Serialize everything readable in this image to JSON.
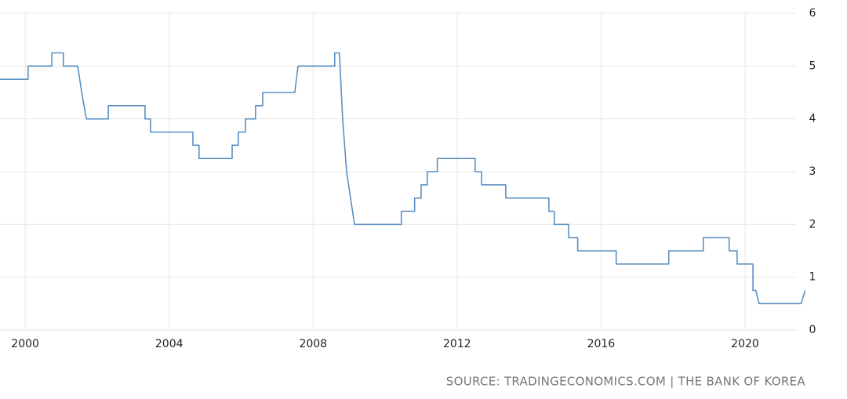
{
  "chart_data": {
    "type": "line",
    "source": "SOURCE: TRADINGECONOMICS.COM | THE BANK OF KOREA",
    "x": [
      1999.3,
      2000.08,
      2000.08,
      2000.74,
      2000.74,
      2001.06,
      2001.06,
      2001.46,
      2001.57,
      2001.7,
      2002.31,
      2002.31,
      2003.33,
      2003.33,
      2003.48,
      2003.48,
      2004.66,
      2004.66,
      2004.83,
      2004.83,
      2005.75,
      2005.75,
      2005.92,
      2005.92,
      2006.12,
      2006.12,
      2006.4,
      2006.4,
      2006.6,
      2006.6,
      2007.49,
      2007.58,
      2008.6,
      2008.6,
      2008.73,
      2008.82,
      2008.93,
      2009.04,
      2009.15,
      2010.45,
      2010.45,
      2010.82,
      2010.82,
      2011.0,
      2011.0,
      2011.17,
      2011.17,
      2011.45,
      2011.45,
      2012.5,
      2012.5,
      2012.68,
      2012.68,
      2013.35,
      2013.35,
      2014.55,
      2014.55,
      2014.7,
      2014.7,
      2015.1,
      2015.1,
      2015.35,
      2015.35,
      2016.42,
      2016.42,
      2017.88,
      2017.88,
      2018.84,
      2018.84,
      2019.56,
      2019.56,
      2019.78,
      2019.78,
      2020.22,
      2020.22,
      2020.3,
      2020.39,
      2021.56,
      2021.67
    ],
    "series": [
      {
        "color": "#5b8fc2",
        "values": [
          4.75,
          4.75,
          5,
          5,
          5.25,
          5.25,
          5,
          5,
          4.5,
          4,
          4,
          4.25,
          4.25,
          4,
          4,
          3.75,
          3.75,
          3.5,
          3.5,
          3.25,
          3.25,
          3.5,
          3.5,
          3.75,
          3.75,
          4,
          4,
          4.25,
          4.25,
          4.5,
          4.5,
          5,
          5,
          5.25,
          5.25,
          4,
          3,
          2.5,
          2,
          2,
          2.25,
          2.25,
          2.5,
          2.5,
          2.75,
          2.75,
          3,
          3,
          3.25,
          3.25,
          3,
          3,
          2.75,
          2.75,
          2.5,
          2.5,
          2.25,
          2.25,
          2,
          2,
          1.75,
          1.75,
          1.5,
          1.5,
          1.25,
          1.25,
          1.5,
          1.5,
          1.75,
          1.75,
          1.5,
          1.5,
          1.25,
          1.25,
          0.75,
          0.75,
          0.5,
          0.5,
          0.75
        ]
      }
    ],
    "xlim": [
      1999.3,
      2021.7
    ],
    "xticks": [
      2000,
      2004,
      2008,
      2012,
      2016,
      2020
    ],
    "ylim": [
      0,
      6
    ],
    "yticks": [
      0,
      1,
      2,
      3,
      4,
      5,
      6
    ],
    "grid": true
  }
}
